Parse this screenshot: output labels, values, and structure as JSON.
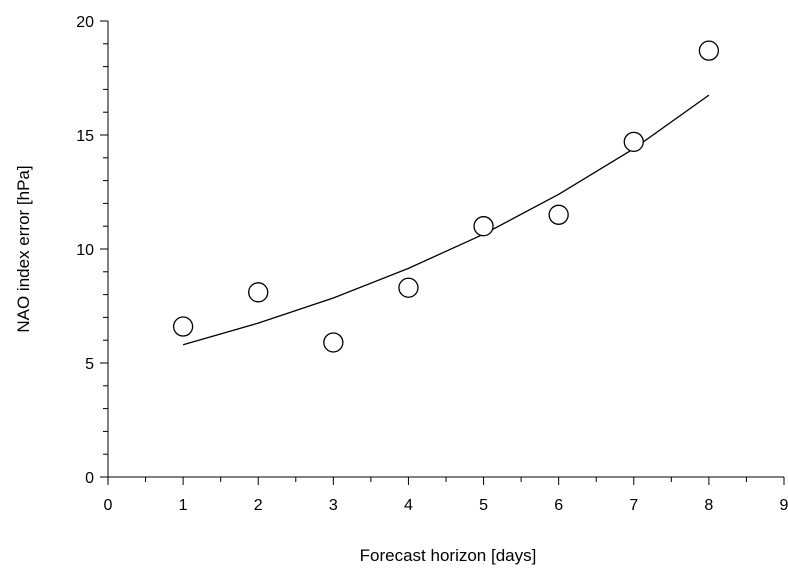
{
  "chart_data": {
    "type": "scatter",
    "title": "",
    "xlabel": "Forecast horizon [days]",
    "ylabel": "NAO index error [hPa]",
    "xlim": [
      0,
      9
    ],
    "ylim": [
      0,
      20
    ],
    "x_ticks": [
      "0",
      "1",
      "2",
      "3",
      "4",
      "5",
      "6",
      "7",
      "8",
      "9"
    ],
    "y_ticks": [
      "0",
      "5",
      "10",
      "15",
      "20"
    ],
    "grid": false,
    "legend": "none",
    "series": [
      {
        "kind": "points",
        "marker": "open-circle",
        "x": [
          1,
          2,
          3,
          4,
          5,
          6,
          7,
          8
        ],
        "y": [
          6.6,
          8.1,
          5.9,
          8.3,
          11.0,
          11.5,
          14.7,
          18.7
        ]
      },
      {
        "kind": "fitted-curve",
        "x": [
          1,
          2,
          3,
          4,
          5,
          6,
          7,
          8
        ],
        "y": [
          5.8,
          6.75,
          7.85,
          9.15,
          10.65,
          12.4,
          14.4,
          16.75
        ]
      }
    ],
    "colors": {
      "axis": "#000000",
      "marker": "#000000",
      "curve": "#000000"
    }
  }
}
